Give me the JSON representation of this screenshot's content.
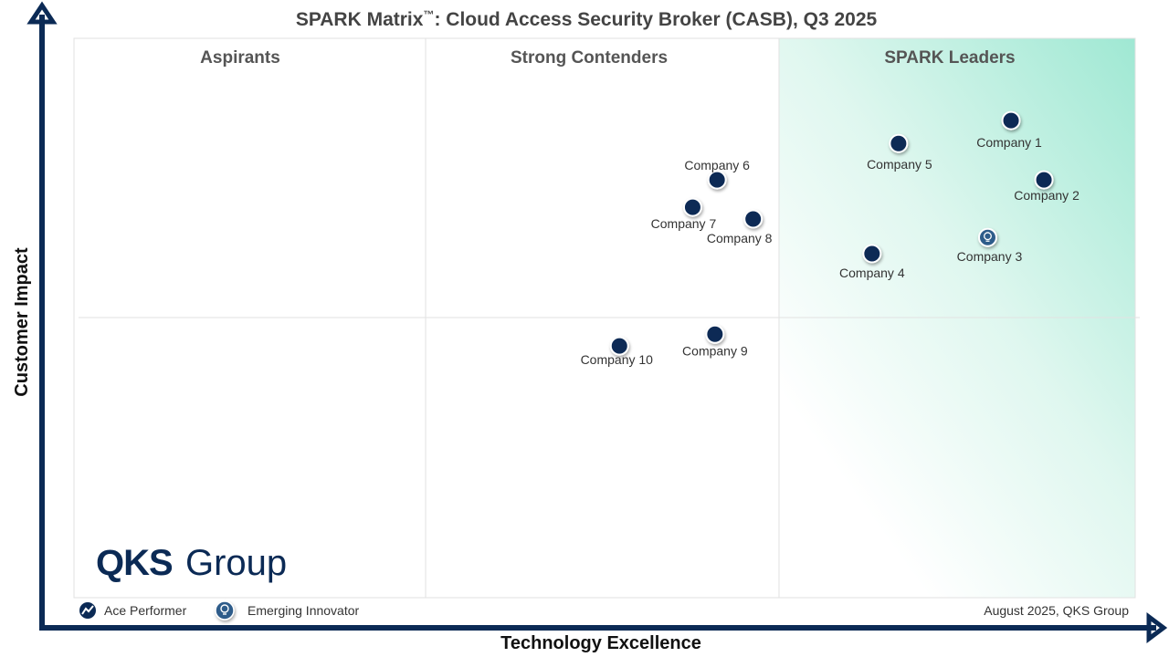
{
  "chart_data": {
    "type": "scatter",
    "title": "SPARK Matrix™: Cloud Access Security Broker (CASB), Q3 2025",
    "title_main": "SPARK Matrix",
    "title_tm": "™",
    "title_rest": ": Cloud Access Security Broker (CASB), Q3 2025",
    "xlabel": "Technology Excellence",
    "ylabel": "Customer Impact",
    "xlim": [
      0,
      100
    ],
    "ylim": [
      0,
      100
    ],
    "grid": "quadrant dividers",
    "quadrants": [
      "Aspirants",
      "Strong Contenders",
      "SPARK Leaders"
    ],
    "points": [
      {
        "label": "Company 1",
        "x": 88.3,
        "y": 85.3,
        "type": "ace"
      },
      {
        "label": "Company 2",
        "x": 91.4,
        "y": 74.7,
        "type": "ace"
      },
      {
        "label": "Company 3",
        "x": 86.1,
        "y": 64.4,
        "type": "innovator"
      },
      {
        "label": "Company 4",
        "x": 75.2,
        "y": 61.5,
        "type": "ace"
      },
      {
        "label": "Company 5",
        "x": 77.7,
        "y": 81.2,
        "type": "ace"
      },
      {
        "label": "Company 6",
        "x": 60.6,
        "y": 74.7,
        "type": "ace"
      },
      {
        "label": "Company 7",
        "x": 58.3,
        "y": 69.8,
        "type": "ace"
      },
      {
        "label": "Company 8",
        "x": 64.0,
        "y": 67.7,
        "type": "ace"
      },
      {
        "label": "Company 9",
        "x": 60.4,
        "y": 47.1,
        "type": "ace"
      },
      {
        "label": "Company 10",
        "x": 51.4,
        "y": 45.0,
        "type": "ace"
      }
    ],
    "legend": [
      {
        "label": "Ace Performer",
        "icon": "trend-line-icon"
      },
      {
        "label": "Emerging Innovator",
        "icon": "lightbulb-icon"
      }
    ],
    "legend_placement": "bottom-left",
    "source_note": "August 2025, QKS Group"
  },
  "logo": {
    "bold": "QKS",
    "light": "Group"
  },
  "colors": {
    "navy": "#0b2a55",
    "leader_gradient": "#9fe8d3",
    "grid": "#e2e2e2",
    "quadrant_text": "#555555"
  }
}
